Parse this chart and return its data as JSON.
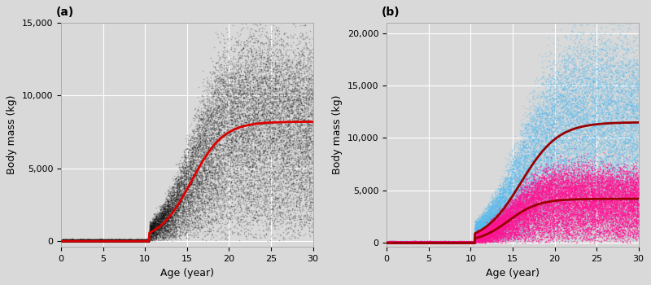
{
  "panel_a": {
    "label": "(a)",
    "xlabel": "Age (year)",
    "ylabel": "Body mass (kg)",
    "xlim": [
      0,
      30
    ],
    "ylim": [
      -400,
      15000
    ],
    "yticks": [
      0,
      5000,
      10000,
      15000
    ],
    "ytick_labels": [
      "0",
      "5,000",
      "10,000",
      "15,000"
    ],
    "xticks": [
      0,
      5,
      10,
      15,
      20,
      25,
      30
    ],
    "scatter_color": "#111111",
    "scatter_alpha": 0.25,
    "scatter_s": 1.5,
    "n_scatter": 25000,
    "curve_color": "#dd0000",
    "curve_lw": 2.0,
    "bg_color": "#d9d9d9",
    "grid_color": "#ffffff",
    "onset_age": 10.5,
    "growth_midpoint": 15.5,
    "growth_rate": 0.52,
    "max_mass": 8200,
    "curve_max": 8200
  },
  "panel_b": {
    "label": "(b)",
    "xlabel": "Age (year)",
    "ylabel": "Body mass (kg)",
    "xlim": [
      0,
      30
    ],
    "ylim": [
      -400,
      21000
    ],
    "yticks": [
      0,
      5000,
      10000,
      15000,
      20000
    ],
    "ytick_labels": [
      "0",
      "5,000",
      "10,000",
      "15,000",
      "20,000"
    ],
    "xticks": [
      0,
      5,
      10,
      15,
      20,
      25,
      30
    ],
    "blue_color": "#55bbee",
    "pink_color": "#ff1493",
    "blue_alpha": 0.4,
    "pink_alpha": 0.55,
    "scatter_s": 1.5,
    "n_scatter": 25000,
    "curve_color": "#990000",
    "curve_lw": 2.0,
    "bg_color": "#d9d9d9",
    "grid_color": "#ffffff",
    "onset_age": 10.5,
    "blue_midpoint": 16.0,
    "blue_rate": 0.45,
    "blue_max": 11500,
    "blue_curve_max": 11500,
    "pink_midpoint": 14.5,
    "pink_rate": 0.55,
    "pink_max": 4200,
    "pink_curve_max": 4200
  },
  "fig_bg": "#d9d9d9"
}
